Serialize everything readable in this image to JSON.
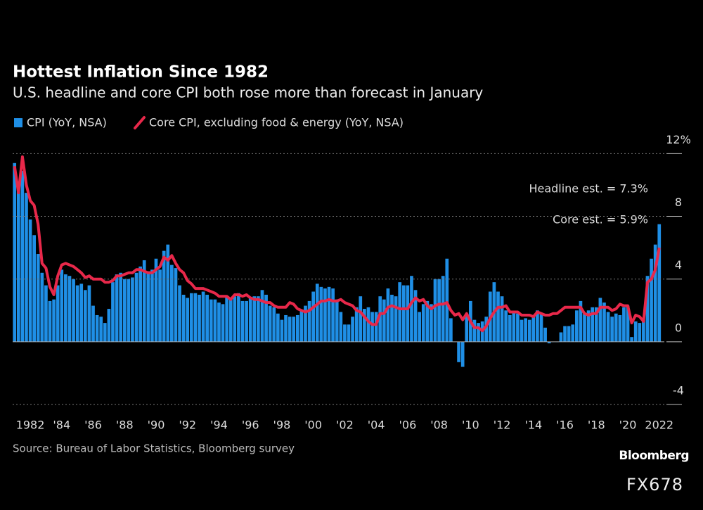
{
  "chart_data": {
    "type": "bar_line",
    "title": "Hottest Inflation Since 1982",
    "subtitle": "U.S. headline and core CPI both rose more than forecast in January",
    "source": "Source: Bureau of Labor Statistics, Bloomberg survey",
    "brand": "Bloomberg",
    "watermark": "FX678",
    "annotations": [
      "Headline est. = 7.3%",
      "Core est. = 5.9%"
    ],
    "x": [
      1981,
      1981.25,
      1981.5,
      1981.75,
      1982,
      1982.25,
      1982.5,
      1982.75,
      1983,
      1983.25,
      1983.5,
      1983.75,
      1984,
      1984.25,
      1984.5,
      1984.75,
      1985,
      1985.25,
      1985.5,
      1985.75,
      1986,
      1986.25,
      1986.5,
      1986.75,
      1987,
      1987.25,
      1987.5,
      1987.75,
      1988,
      1988.25,
      1988.5,
      1988.75,
      1989,
      1989.25,
      1989.5,
      1989.75,
      1990,
      1990.25,
      1990.5,
      1990.75,
      1991,
      1991.25,
      1991.5,
      1991.75,
      1992,
      1992.25,
      1992.5,
      1992.75,
      1993,
      1993.25,
      1993.5,
      1993.75,
      1994,
      1994.25,
      1994.5,
      1994.75,
      1995,
      1995.25,
      1995.5,
      1995.75,
      1996,
      1996.25,
      1996.5,
      1996.75,
      1997,
      1997.25,
      1997.5,
      1997.75,
      1998,
      1998.25,
      1998.5,
      1998.75,
      1999,
      1999.25,
      1999.5,
      1999.75,
      2000,
      2000.25,
      2000.5,
      2000.75,
      2001,
      2001.25,
      2001.5,
      2001.75,
      2002,
      2002.25,
      2002.5,
      2002.75,
      2003,
      2003.25,
      2003.5,
      2003.75,
      2004,
      2004.25,
      2004.5,
      2004.75,
      2005,
      2005.25,
      2005.5,
      2005.75,
      2006,
      2006.25,
      2006.5,
      2006.75,
      2007,
      2007.25,
      2007.5,
      2007.75,
      2008,
      2008.25,
      2008.5,
      2008.75,
      2009,
      2009.25,
      2009.5,
      2009.75,
      2010,
      2010.25,
      2010.5,
      2010.75,
      2011,
      2011.25,
      2011.5,
      2011.75,
      2012,
      2012.25,
      2012.5,
      2012.75,
      2013,
      2013.25,
      2013.5,
      2013.75,
      2014,
      2014.25,
      2014.5,
      2014.75,
      2015,
      2015.25,
      2015.5,
      2015.75,
      2016,
      2016.25,
      2016.5,
      2016.75,
      2017,
      2017.25,
      2017.5,
      2017.75,
      2018,
      2018.25,
      2018.5,
      2018.75,
      2019,
      2019.25,
      2019.5,
      2019.75,
      2020,
      2020.25,
      2020.5,
      2020.75,
      2021,
      2021.25,
      2021.5,
      2021.75,
      2022
    ],
    "series": [
      {
        "name": "CPI (YoY, NSA)",
        "color": "#1f8fe6",
        "kind": "bar",
        "values": [
          11.4,
          9.8,
          10.9,
          9.5,
          7.8,
          6.8,
          5.6,
          4.4,
          3.6,
          2.6,
          2.7,
          3.6,
          4.6,
          4.3,
          4.2,
          4.0,
          3.6,
          3.7,
          3.3,
          3.6,
          2.3,
          1.7,
          1.6,
          1.2,
          2.1,
          3.8,
          4.3,
          4.4,
          4.0,
          4.0,
          4.1,
          4.4,
          4.8,
          5.2,
          4.5,
          4.6,
          5.3,
          4.6,
          5.8,
          6.2,
          4.9,
          4.7,
          3.6,
          3.0,
          2.8,
          3.1,
          3.1,
          3.0,
          3.2,
          3.0,
          2.7,
          2.7,
          2.5,
          2.4,
          2.9,
          2.7,
          2.9,
          3.1,
          2.6,
          2.6,
          2.8,
          2.9,
          2.9,
          3.3,
          3.0,
          2.3,
          2.2,
          1.8,
          1.4,
          1.7,
          1.6,
          1.6,
          1.7,
          2.0,
          2.3,
          2.6,
          3.2,
          3.7,
          3.5,
          3.4,
          3.5,
          3.4,
          2.7,
          1.9,
          1.1,
          1.1,
          1.6,
          2.2,
          2.9,
          2.1,
          2.2,
          1.9,
          1.9,
          2.9,
          2.7,
          3.4,
          3.0,
          2.9,
          3.8,
          3.6,
          3.6,
          4.2,
          3.3,
          1.9,
          2.4,
          2.6,
          2.4,
          4.0,
          4.0,
          4.2,
          5.3,
          1.5,
          0.0,
          -1.3,
          -1.6,
          1.8,
          2.6,
          1.4,
          1.2,
          1.3,
          1.6,
          3.2,
          3.8,
          3.2,
          2.9,
          2.0,
          1.7,
          1.9,
          1.8,
          1.4,
          1.5,
          1.4,
          1.6,
          2.0,
          1.8,
          0.9,
          -0.1,
          0.0,
          0.0,
          0.6,
          1.0,
          1.0,
          1.1,
          2.0,
          2.6,
          1.8,
          2.0,
          2.2,
          2.2,
          2.8,
          2.5,
          1.9,
          1.6,
          1.8,
          1.7,
          2.2,
          2.3,
          0.3,
          1.3,
          1.2,
          1.4,
          4.2,
          5.3,
          6.2,
          7.5
        ]
      },
      {
        "name": "Core CPI, excluding food & energy (YoY, NSA)",
        "color": "#e8284a",
        "kind": "line",
        "values": [
          11.2,
          9.5,
          11.8,
          10.0,
          9.0,
          8.7,
          7.5,
          5.0,
          4.7,
          3.5,
          3.0,
          4.2,
          4.9,
          5.0,
          4.9,
          4.8,
          4.6,
          4.4,
          4.1,
          4.2,
          4.0,
          4.0,
          4.0,
          3.8,
          3.8,
          3.9,
          4.2,
          4.2,
          4.3,
          4.4,
          4.4,
          4.6,
          4.6,
          4.5,
          4.4,
          4.4,
          4.6,
          4.8,
          5.4,
          5.2,
          5.5,
          5.0,
          4.6,
          4.4,
          3.9,
          3.7,
          3.4,
          3.4,
          3.4,
          3.3,
          3.2,
          3.1,
          2.9,
          2.9,
          2.9,
          2.7,
          3.0,
          3.0,
          2.9,
          3.0,
          2.8,
          2.7,
          2.7,
          2.6,
          2.5,
          2.5,
          2.3,
          2.2,
          2.2,
          2.2,
          2.5,
          2.4,
          2.1,
          2.0,
          1.9,
          2.0,
          2.2,
          2.4,
          2.6,
          2.6,
          2.7,
          2.6,
          2.6,
          2.7,
          2.5,
          2.4,
          2.3,
          2.0,
          1.9,
          1.6,
          1.3,
          1.1,
          1.1,
          1.8,
          1.8,
          2.2,
          2.3,
          2.2,
          2.1,
          2.1,
          2.1,
          2.5,
          2.8,
          2.6,
          2.7,
          2.3,
          2.1,
          2.3,
          2.4,
          2.4,
          2.5,
          2.0,
          1.7,
          1.8,
          1.4,
          1.8,
          1.3,
          0.9,
          0.9,
          0.7,
          1.0,
          1.5,
          1.9,
          2.2,
          2.2,
          2.3,
          1.9,
          1.9,
          1.9,
          1.7,
          1.7,
          1.7,
          1.6,
          1.9,
          1.8,
          1.7,
          1.7,
          1.8,
          1.8,
          2.0,
          2.2,
          2.2,
          2.2,
          2.2,
          2.2,
          1.8,
          1.7,
          1.8,
          1.8,
          2.2,
          2.2,
          2.2,
          2.0,
          2.1,
          2.4,
          2.3,
          2.3,
          1.2,
          1.7,
          1.6,
          1.3,
          3.8,
          4.0,
          4.6,
          6.0
        ]
      }
    ],
    "xlim": [
      1980.88,
      2022.1
    ],
    "xticks": [
      {
        "value": 1982,
        "label": "1982"
      },
      {
        "value": 1984,
        "label": "'84"
      },
      {
        "value": 1986,
        "label": "'86"
      },
      {
        "value": 1988,
        "label": "'88"
      },
      {
        "value": 1990,
        "label": "'90"
      },
      {
        "value": 1992,
        "label": "'92"
      },
      {
        "value": 1994,
        "label": "'94"
      },
      {
        "value": 1996,
        "label": "'96"
      },
      {
        "value": 1998,
        "label": "'98"
      },
      {
        "value": 2000,
        "label": "'00"
      },
      {
        "value": 2002,
        "label": "'02"
      },
      {
        "value": 2004,
        "label": "'04"
      },
      {
        "value": 2006,
        "label": "'06"
      },
      {
        "value": 2008,
        "label": "'08"
      },
      {
        "value": 2010,
        "label": "'10"
      },
      {
        "value": 2012,
        "label": "'12"
      },
      {
        "value": 2014,
        "label": "'14"
      },
      {
        "value": 2016,
        "label": "'16"
      },
      {
        "value": 2018,
        "label": "'18"
      },
      {
        "value": 2020,
        "label": "'20"
      },
      {
        "value": 2022,
        "label": "2022"
      }
    ],
    "ylim": [
      -4,
      12
    ],
    "yticks": [
      {
        "value": 12,
        "label": "12%"
      },
      8,
      4,
      0,
      -4
    ],
    "grid": true
  }
}
